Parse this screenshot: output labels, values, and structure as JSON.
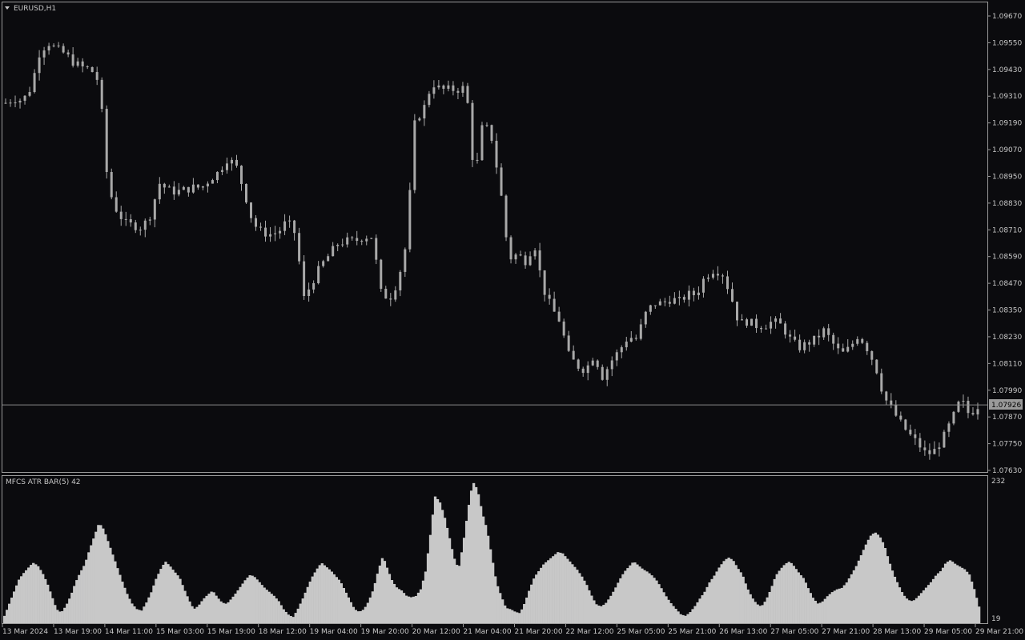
{
  "symbol_label": "EURUSD,H1",
  "indicator_label": "MFCS ATR BAR(5) 42",
  "indicator_max_label": "232",
  "indicator_min_label": "19",
  "current_price_label": "1.07926",
  "colors": {
    "background": "#0b0b0e",
    "frame": "#9a9a9a",
    "candle": "#a9a9a9",
    "atr_bar": "#c8c8c8",
    "text": "#c8c8c8",
    "price_tag_bg": "#9a9a9a",
    "price_tag_text": "#000000"
  },
  "chart_data": [
    {
      "type": "candlestick",
      "title": "EURUSD,H1",
      "timeframe": "H1",
      "ylim": [
        1.0763,
        1.0967
      ],
      "current_price": 1.07926,
      "y_tick_labels": [
        "1.09670",
        "1.09550",
        "1.09430",
        "1.09310",
        "1.09190",
        "1.09070",
        "1.08950",
        "1.08830",
        "1.08710",
        "1.08590",
        "1.08470",
        "1.08350",
        "1.08230",
        "1.08110",
        "1.07990",
        "1.07870",
        "1.07750",
        "1.07630"
      ],
      "x_tick_labels": [
        "13 Mar 2024",
        "13 Mar 19:00",
        "14 Mar 11:00",
        "15 Mar 03:00",
        "15 Mar 19:00",
        "18 Mar 12:00",
        "19 Mar 04:00",
        "19 Mar 20:00",
        "20 Mar 12:00",
        "21 Mar 04:00",
        "21 Mar 20:00",
        "22 Mar 12:00",
        "25 Mar 05:00",
        "25 Mar 21:00",
        "26 Mar 13:00",
        "27 Mar 05:00",
        "27 Mar 21:00",
        "28 Mar 13:00",
        "29 Mar 05:00",
        "29 Mar 21:00"
      ],
      "close_path": [
        1.0928,
        1.093,
        1.0929,
        1.0935,
        1.0951,
        1.0955,
        1.0952,
        1.095,
        1.0946,
        1.0944,
        1.0943,
        1.0937,
        1.089,
        1.088,
        1.0874,
        1.0873,
        1.0872,
        1.0878,
        1.0892,
        1.0889,
        1.0888,
        1.0889,
        1.089,
        1.089,
        1.0894,
        1.0897,
        1.0903,
        1.09,
        1.0888,
        1.0874,
        1.087,
        1.0869,
        1.087,
        1.0875,
        1.0869,
        1.084,
        1.0848,
        1.0855,
        1.086,
        1.0865,
        1.0866,
        1.0866,
        1.0868,
        1.0868,
        1.0843,
        1.084,
        1.0848,
        1.0865,
        1.092,
        1.0925,
        1.0937,
        1.0934,
        1.0934,
        1.0934,
        1.0935,
        1.0893,
        1.092,
        1.0912,
        1.089,
        1.0858,
        1.086,
        1.0857,
        1.0865,
        1.0845,
        1.0836,
        1.083,
        1.0815,
        1.081,
        1.0808,
        1.0815,
        1.0805,
        1.0812,
        1.0817,
        1.0823,
        1.0822,
        1.0833,
        1.0838,
        1.0838,
        1.084,
        1.0839,
        1.0842,
        1.0842,
        1.085,
        1.0853,
        1.0852,
        1.0842,
        1.0829,
        1.083,
        1.0828,
        1.0828,
        1.083,
        1.0828,
        1.0822,
        1.0818,
        1.082,
        1.0822,
        1.0826,
        1.082,
        1.0815,
        1.0818,
        1.0824,
        1.0818,
        1.081,
        1.0796,
        1.079,
        1.0784,
        1.0779,
        1.0775,
        1.077,
        1.0772,
        1.0778,
        1.0786,
        1.0795,
        1.0788,
        1.0792
      ]
    },
    {
      "type": "bar",
      "title": "MFCS ATR BAR(5) 42",
      "ylim": [
        19,
        232
      ],
      "values_path": [
        30,
        48,
        66,
        84,
        94,
        102,
        110,
        106,
        95,
        80,
        60,
        40,
        35,
        45,
        60,
        80,
        95,
        108,
        130,
        150,
        170,
        160,
        140,
        120,
        100,
        80,
        62,
        48,
        40,
        38,
        50,
        65,
        85,
        100,
        112,
        105,
        96,
        88,
        70,
        54,
        40,
        45,
        55,
        62,
        68,
        58,
        50,
        48,
        56,
        65,
        75,
        85,
        92,
        88,
        80,
        72,
        66,
        60,
        52,
        40,
        32,
        28,
        40,
        55,
        72,
        88,
        100,
        110,
        104,
        98,
        90,
        82,
        68,
        54,
        40,
        36,
        40,
        52,
        70,
        98,
        120,
        100,
        82,
        72,
        68,
        60,
        58,
        60,
        70,
        96,
        150,
        210,
        202,
        180,
        150,
        118,
        100,
        140,
        190,
        232,
        220,
        185,
        160,
        120,
        80,
        60,
        42,
        40,
        36,
        34,
        50,
        70,
        88,
        98,
        108,
        114,
        120,
        126,
        124,
        116,
        108,
        100,
        90,
        78,
        62,
        48,
        44,
        48,
        58,
        70,
        84,
        96,
        104,
        112,
        106,
        100,
        96,
        90,
        82,
        70,
        58,
        48,
        40,
        32,
        30,
        36,
        45,
        56,
        66,
        80,
        90,
        102,
        112,
        118,
        114,
        102,
        92,
        72,
        58,
        48,
        44,
        54,
        70,
        90,
        100,
        108,
        112,
        104,
        94,
        86,
        70,
        56,
        48,
        52,
        60,
        66,
        70,
        72,
        80,
        92,
        104,
        120,
        136,
        150,
        156,
        150,
        136,
        112,
        92,
        76,
        62,
        54,
        52,
        58,
        66,
        74,
        82,
        92,
        98,
        110,
        114,
        108,
        104,
        100,
        92,
        70,
        44
      ]
    }
  ]
}
